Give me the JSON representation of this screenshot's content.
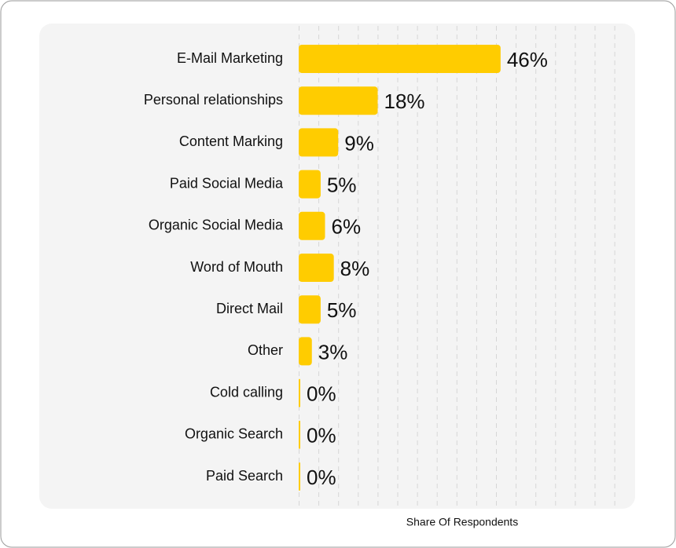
{
  "chart_data": {
    "type": "bar",
    "orientation": "horizontal",
    "x_label": "Share Of Respondents",
    "categories": [
      "E-Mail Marketing",
      "Personal relationships",
      "Content Marking",
      "Paid Social Media",
      "Organic Social Media",
      "Word of Mouth",
      "Direct Mail",
      "Other",
      "Cold calling",
      "Organic Search",
      "Paid Search"
    ],
    "values": [
      46,
      18,
      9,
      5,
      6,
      8,
      5,
      3,
      0,
      0,
      0
    ],
    "value_labels": [
      "46%",
      "18%",
      "9%",
      "5%",
      "6%",
      "8%",
      "5%",
      "3%",
      "0%",
      "0%",
      "0%"
    ],
    "color": "#ffcc00",
    "xlim": [
      0,
      72
    ],
    "grid": true
  }
}
